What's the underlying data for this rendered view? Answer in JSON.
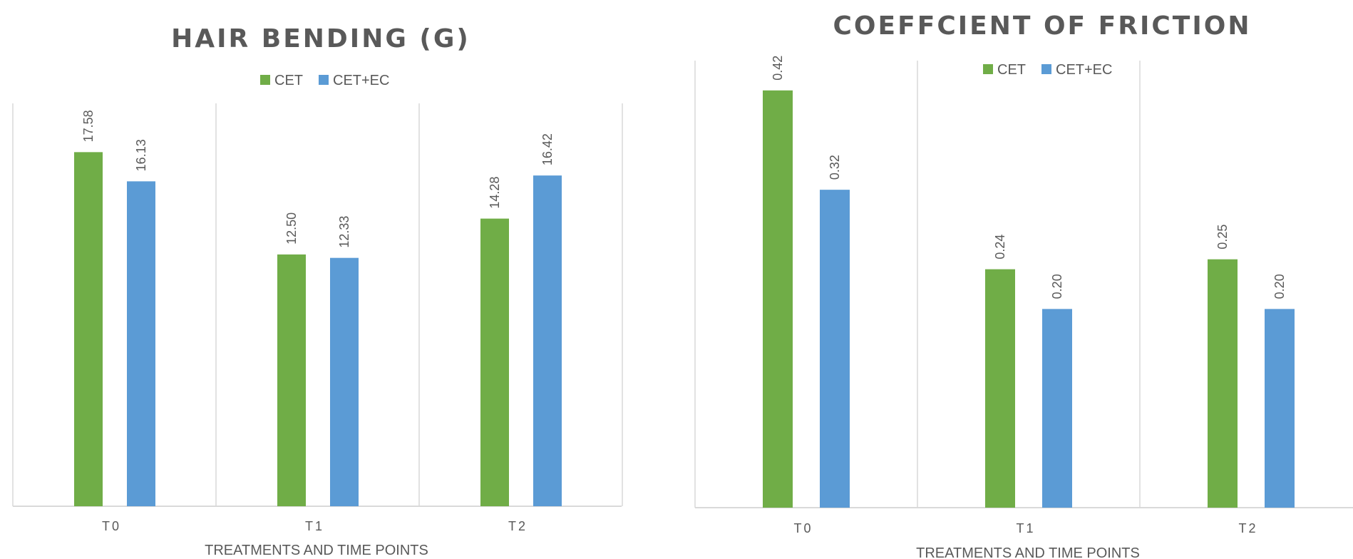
{
  "colors": {
    "CET": "#70AD47",
    "CET+EC": "#5B9BD5",
    "text": "#595959",
    "grid": "#D9D9D9"
  },
  "chart_data": [
    {
      "type": "bar",
      "title": "HAIR BENDING (G)",
      "xlabel": "TREATMENTS AND TIME POINTS",
      "ylabel": "",
      "categories": [
        "T0",
        "T1",
        "T2"
      ],
      "series": [
        {
          "name": "CET",
          "values": [
            17.58,
            12.5,
            14.28
          ],
          "labels": [
            "17.58",
            "12.50",
            "14.28"
          ]
        },
        {
          "name": "CET+EC",
          "values": [
            16.13,
            12.33,
            16.42
          ],
          "labels": [
            "16.13",
            "12.33",
            "16.42"
          ]
        }
      ],
      "ylim": [
        0,
        20
      ],
      "legend": "top-center",
      "grid": "vertical separators"
    },
    {
      "type": "bar",
      "title": "COEFFCIENT OF FRICTION",
      "xlabel": "TREATMENTS AND TIME POINTS",
      "ylabel": "",
      "categories": [
        "T0",
        "T1",
        "T2"
      ],
      "series": [
        {
          "name": "CET",
          "values": [
            0.42,
            0.24,
            0.25
          ],
          "labels": [
            "0.42",
            "0.24",
            "0.25"
          ]
        },
        {
          "name": "CET+EC",
          "values": [
            0.32,
            0.2,
            0.2
          ],
          "labels": [
            "0.32",
            "0.20",
            "0.20"
          ]
        }
      ],
      "ylim": [
        0,
        0.45
      ],
      "legend": "top-center",
      "grid": "vertical separators"
    }
  ]
}
